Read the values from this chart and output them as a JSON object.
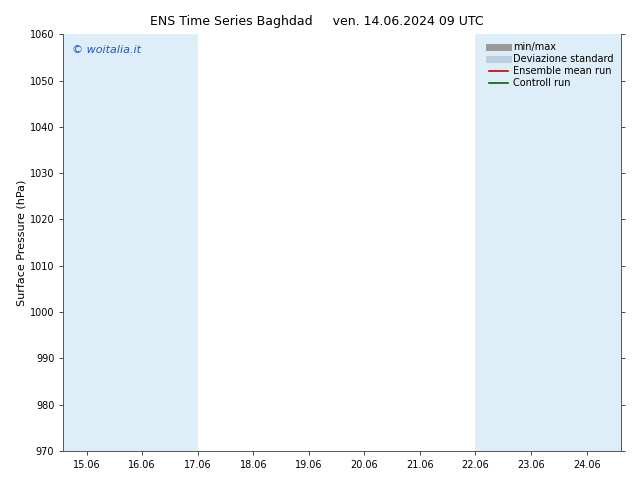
{
  "title_left": "ENS Time Series Baghdad",
  "title_right": "ven. 14.06.2024 09 UTC",
  "ylabel": "Surface Pressure (hPa)",
  "ylim": [
    970,
    1060
  ],
  "yticks": [
    970,
    980,
    990,
    1000,
    1010,
    1020,
    1030,
    1040,
    1050,
    1060
  ],
  "x_min": 14.583,
  "x_max": 24.625,
  "xtick_positions": [
    15.0,
    16.0,
    17.0,
    18.0,
    19.0,
    20.0,
    21.0,
    22.0,
    23.0,
    24.0
  ],
  "xtick_labels": [
    "15.06",
    "16.06",
    "17.06",
    "18.06",
    "19.06",
    "20.06",
    "21.06",
    "22.06",
    "23.06",
    "24.06"
  ],
  "shaded_bands": [
    {
      "x_start": 14.583,
      "x_end": 15.0,
      "color": "#ddeef8"
    },
    {
      "x_start": 15.0,
      "x_end": 17.0,
      "color": "#ddeef8"
    },
    {
      "x_start": 22.0,
      "x_end": 23.0,
      "color": "#ddeef8"
    },
    {
      "x_start": 23.0,
      "x_end": 24.625,
      "color": "#ddeef8"
    }
  ],
  "watermark_text": "© woitalia.it",
  "watermark_color": "#2255cc",
  "legend_entries": [
    {
      "label": "min/max",
      "color": "#999999",
      "lw": 5,
      "style": "solid"
    },
    {
      "label": "Deviazione standard",
      "color": "#bbcfdf",
      "lw": 5,
      "style": "solid"
    },
    {
      "label": "Ensemble mean run",
      "color": "#cc0000",
      "lw": 1.2,
      "style": "solid"
    },
    {
      "label": "Controll run",
      "color": "#006600",
      "lw": 1.2,
      "style": "solid"
    }
  ],
  "bg_color": "#ffffff",
  "plot_bg_color": "#ffffff",
  "title_fontsize": 9,
  "tick_fontsize": 7,
  "ylabel_fontsize": 8,
  "legend_fontsize": 7
}
